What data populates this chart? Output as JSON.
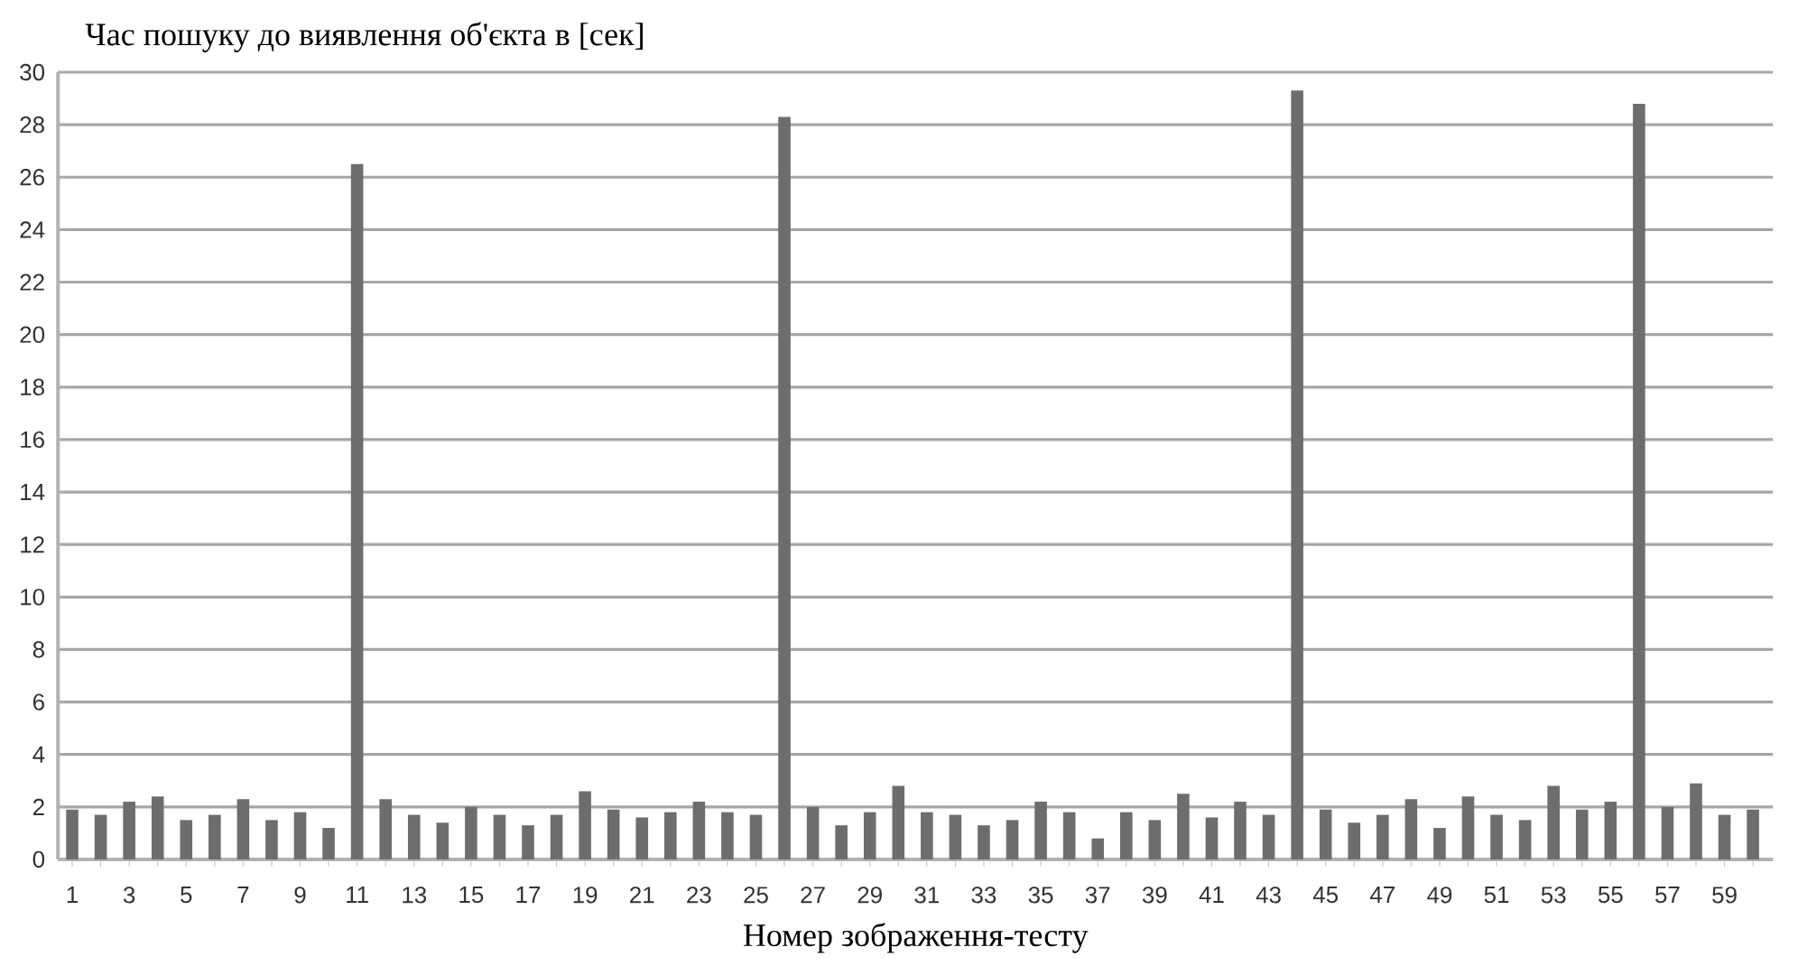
{
  "chart_data": {
    "type": "bar",
    "ylabel": "Час пошуку до виявлення об'єкта в [сек]",
    "xlabel": "Номер зображення-тесту",
    "categories": [
      "1",
      null,
      "3",
      null,
      "5",
      null,
      "7",
      null,
      "9",
      null,
      "11",
      null,
      "13",
      null,
      "15",
      null,
      "17",
      null,
      "19",
      null,
      "21",
      null,
      "23",
      null,
      "25",
      null,
      "27",
      null,
      "29",
      null,
      "31",
      null,
      "33",
      null,
      "35",
      null,
      "37",
      null,
      "39",
      null,
      "41",
      null,
      "43",
      null,
      "45",
      null,
      "47",
      null,
      "49",
      null,
      "51",
      null,
      "53",
      null,
      "55",
      null,
      "57",
      null,
      "59",
      null
    ],
    "values": [
      1.9,
      1.7,
      2.2,
      2.4,
      1.5,
      1.7,
      2.3,
      1.5,
      1.8,
      1.2,
      26.5,
      2.3,
      1.7,
      1.4,
      2.0,
      1.7,
      1.3,
      1.7,
      2.6,
      1.9,
      1.6,
      1.8,
      2.2,
      1.8,
      1.7,
      28.3,
      2.0,
      1.3,
      1.8,
      2.8,
      1.8,
      1.7,
      1.3,
      1.5,
      2.2,
      1.8,
      0.8,
      1.8,
      1.5,
      2.5,
      1.6,
      2.2,
      1.7,
      29.3,
      1.9,
      1.4,
      1.7,
      2.3,
      1.2,
      2.4,
      1.7,
      1.5,
      2.8,
      1.9,
      2.2,
      28.8,
      2.0,
      2.9,
      1.7,
      1.9
    ],
    "color": "#6d6d6d",
    "ylim": [
      0,
      30
    ],
    "yticks": [
      0,
      2,
      4,
      6,
      8,
      10,
      12,
      14,
      16,
      18,
      20,
      22,
      24,
      26,
      28,
      30
    ],
    "grid": "y"
  }
}
